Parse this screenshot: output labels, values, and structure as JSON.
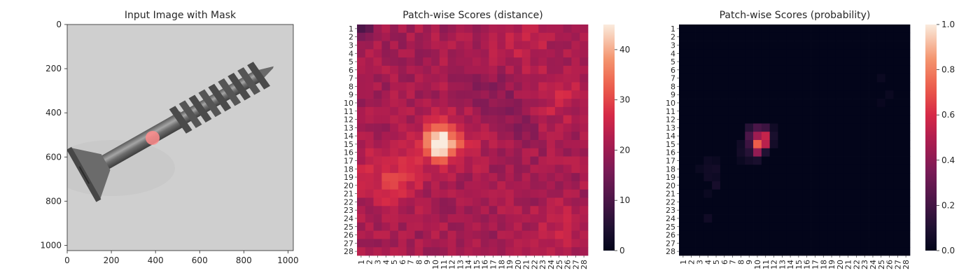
{
  "chart_data": [
    {
      "type": "image",
      "title": "Input Image with Mask",
      "xlim": [
        0,
        1024
      ],
      "ylim": [
        1024,
        0
      ],
      "xticks": [
        "0",
        "200",
        "400",
        "600",
        "800",
        "1000"
      ],
      "yticks": [
        "0",
        "200",
        "400",
        "600",
        "800",
        "1000"
      ],
      "content": "grayscale photo of a screw with a red circular mask",
      "mask": {
        "shape": "circle",
        "center": [
          380,
          510
        ],
        "radius": 32,
        "color": "#ff8c8c"
      }
    },
    {
      "type": "heatmap",
      "title": "Patch-wise Scores (distance)",
      "grid_size": 28,
      "tick_labels": [
        "1",
        "2",
        "3",
        "4",
        "5",
        "6",
        "7",
        "8",
        "9",
        "10",
        "11",
        "12",
        "13",
        "14",
        "15",
        "16",
        "17",
        "18",
        "19",
        "20",
        "21",
        "22",
        "23",
        "24",
        "25",
        "26",
        "27",
        "28"
      ],
      "colormap": "rocket",
      "vmin": 0,
      "vmax": 45,
      "colorbar_ticks": [
        "0",
        "10",
        "20",
        "30",
        "40"
      ],
      "base_level": 21,
      "peak": {
        "row": 15,
        "col": 10,
        "value": 45
      },
      "features": [
        {
          "row": 15.0,
          "col": 10.5,
          "amp": 24,
          "spread": 1.2
        },
        {
          "row": 14.5,
          "col": 11.5,
          "amp": 8,
          "spread": 2.3
        },
        {
          "row": 19.0,
          "col": 4.5,
          "amp": 7,
          "spread": 2.5
        },
        {
          "row": 3.0,
          "col": 20.5,
          "amp": 4,
          "spread": 2.0
        },
        {
          "row": 9.0,
          "col": 25.0,
          "amp": 5,
          "spread": 2.0
        },
        {
          "row": 25.5,
          "col": 25.0,
          "amp": 4,
          "spread": 2.0
        },
        {
          "row": 1.0,
          "col": 1.0,
          "amp": -12,
          "spread": 0.8
        },
        {
          "row": 9.5,
          "col": 17.0,
          "amp": -4,
          "spread": 2.0
        },
        {
          "row": 13.0,
          "col": 20.0,
          "amp": -3,
          "spread": 1.5
        }
      ]
    },
    {
      "type": "heatmap",
      "title": "Patch-wise Scores (probability)",
      "grid_size": 28,
      "tick_labels": [
        "1",
        "2",
        "3",
        "4",
        "5",
        "6",
        "7",
        "8",
        "9",
        "10",
        "11",
        "12",
        "13",
        "14",
        "15",
        "16",
        "17",
        "18",
        "19",
        "20",
        "21",
        "22",
        "23",
        "24",
        "25",
        "26",
        "27",
        "28"
      ],
      "colormap": "rocket",
      "vmin": 0,
      "vmax": 1.0,
      "colorbar_ticks": [
        "0.0",
        "0.2",
        "0.4",
        "0.6",
        "0.8",
        "1.0"
      ],
      "base_level": 0.0,
      "cells": [
        {
          "row": 13,
          "col": 9,
          "value": 0.12
        },
        {
          "row": 13,
          "col": 10,
          "value": 0.22
        },
        {
          "row": 13,
          "col": 11,
          "value": 0.18
        },
        {
          "row": 13,
          "col": 12,
          "value": 0.05
        },
        {
          "row": 14,
          "col": 9,
          "value": 0.22
        },
        {
          "row": 14,
          "col": 10,
          "value": 0.45
        },
        {
          "row": 14,
          "col": 11,
          "value": 0.55
        },
        {
          "row": 14,
          "col": 12,
          "value": 0.08
        },
        {
          "row": 15,
          "col": 8,
          "value": 0.05
        },
        {
          "row": 15,
          "col": 9,
          "value": 0.18
        },
        {
          "row": 15,
          "col": 10,
          "value": 0.72
        },
        {
          "row": 15,
          "col": 11,
          "value": 0.52
        },
        {
          "row": 15,
          "col": 12,
          "value": 0.06
        },
        {
          "row": 16,
          "col": 8,
          "value": 0.06
        },
        {
          "row": 16,
          "col": 9,
          "value": 0.12
        },
        {
          "row": 16,
          "col": 10,
          "value": 0.42
        },
        {
          "row": 16,
          "col": 11,
          "value": 0.1
        },
        {
          "row": 17,
          "col": 8,
          "value": 0.03
        },
        {
          "row": 17,
          "col": 9,
          "value": 0.06
        },
        {
          "row": 17,
          "col": 10,
          "value": 0.08
        },
        {
          "row": 17,
          "col": 4,
          "value": 0.04
        },
        {
          "row": 17,
          "col": 5,
          "value": 0.03
        },
        {
          "row": 18,
          "col": 3,
          "value": 0.03
        },
        {
          "row": 18,
          "col": 4,
          "value": 0.05
        },
        {
          "row": 18,
          "col": 5,
          "value": 0.06
        },
        {
          "row": 19,
          "col": 4,
          "value": 0.05
        },
        {
          "row": 19,
          "col": 5,
          "value": 0.04
        },
        {
          "row": 20,
          "col": 5,
          "value": 0.07
        },
        {
          "row": 21,
          "col": 4,
          "value": 0.03
        },
        {
          "row": 24,
          "col": 4,
          "value": 0.05
        },
        {
          "row": 7,
          "col": 25,
          "value": 0.03
        },
        {
          "row": 9,
          "col": 26,
          "value": 0.03
        },
        {
          "row": 10,
          "col": 25,
          "value": 0.02
        }
      ]
    }
  ]
}
